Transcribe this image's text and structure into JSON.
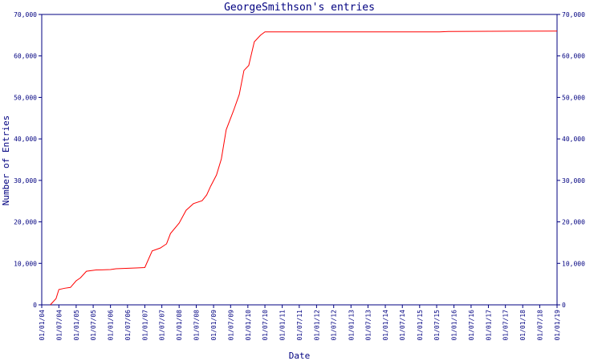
{
  "chart_data": {
    "type": "line",
    "title": "GeorgeSmithson's entries",
    "x_label": "Date",
    "y_label": "Number of Entries",
    "x": [
      "2004-04-01",
      "2004-06-01",
      "2004-07-01",
      "2004-09-01",
      "2004-11-01",
      "2005-01-01",
      "2005-02-15",
      "2005-04-20",
      "2005-08-01",
      "2006-01-01",
      "2006-03-01",
      "2006-10-01",
      "2007-01-01",
      "2007-03-20",
      "2007-06-15",
      "2007-08-20",
      "2007-10-01",
      "2008-01-01",
      "2008-03-15",
      "2008-06-01",
      "2008-09-01",
      "2008-10-20",
      "2008-12-01",
      "2009-02-01",
      "2009-03-25",
      "2009-05-15",
      "2009-08-01",
      "2009-10-01",
      "2009-11-20",
      "2010-01-10",
      "2010-03-10",
      "2010-05-15",
      "2010-07-01",
      "2015-08-01",
      "2015-11-01",
      "2019-01-01"
    ],
    "series": [
      {
        "name": "Entries",
        "color": "#ff0000",
        "values": [
          0,
          1500,
          3700,
          4000,
          4200,
          5800,
          6500,
          8100,
          8400,
          8500,
          8700,
          8900,
          9000,
          13000,
          13700,
          14700,
          17200,
          19700,
          22800,
          24400,
          25100,
          26500,
          28600,
          31300,
          35200,
          42200,
          46800,
          50700,
          56500,
          57700,
          63400,
          65000,
          65800,
          65800,
          65900,
          66000
        ]
      }
    ],
    "xlim": [
      "2004-01-01",
      "2019-01-01"
    ],
    "xticks": [
      {
        "value": "2004-01-01",
        "label": "01/01/04"
      },
      {
        "value": "2004-07-01",
        "label": "01/07/04"
      },
      {
        "value": "2005-01-01",
        "label": "01/01/05"
      },
      {
        "value": "2005-07-01",
        "label": "01/07/05"
      },
      {
        "value": "2006-01-01",
        "label": "01/01/06"
      },
      {
        "value": "2006-07-01",
        "label": "01/07/06"
      },
      {
        "value": "2007-01-01",
        "label": "01/01/07"
      },
      {
        "value": "2007-07-01",
        "label": "01/07/07"
      },
      {
        "value": "2008-01-01",
        "label": "01/01/08"
      },
      {
        "value": "2008-07-01",
        "label": "01/07/08"
      },
      {
        "value": "2009-01-01",
        "label": "01/01/09"
      },
      {
        "value": "2009-07-01",
        "label": "01/07/09"
      },
      {
        "value": "2010-01-01",
        "label": "01/01/10"
      },
      {
        "value": "2010-07-01",
        "label": "01/07/10"
      },
      {
        "value": "2011-01-01",
        "label": "01/01/11"
      },
      {
        "value": "2011-07-01",
        "label": "01/07/11"
      },
      {
        "value": "2012-01-01",
        "label": "01/01/12"
      },
      {
        "value": "2012-07-01",
        "label": "01/07/12"
      },
      {
        "value": "2013-01-01",
        "label": "01/01/13"
      },
      {
        "value": "2013-07-01",
        "label": "01/07/13"
      },
      {
        "value": "2014-01-01",
        "label": "01/01/14"
      },
      {
        "value": "2014-07-01",
        "label": "01/07/14"
      },
      {
        "value": "2015-01-01",
        "label": "01/01/15"
      },
      {
        "value": "2015-07-01",
        "label": "01/07/15"
      },
      {
        "value": "2016-01-01",
        "label": "01/01/16"
      },
      {
        "value": "2016-07-01",
        "label": "01/07/16"
      },
      {
        "value": "2017-01-01",
        "label": "01/01/17"
      },
      {
        "value": "2017-07-01",
        "label": "01/07/17"
      },
      {
        "value": "2018-01-01",
        "label": "01/01/18"
      },
      {
        "value": "2018-07-01",
        "label": "01/07/18"
      },
      {
        "value": "2019-01-01",
        "label": "01/01/19"
      }
    ],
    "ylim": [
      0,
      70000
    ],
    "yticks": [
      0,
      {
        "value": 10000,
        "label": "10,000"
      },
      {
        "value": 20000,
        "label": "20,000"
      },
      {
        "value": 30000,
        "label": "30,000"
      },
      {
        "value": 40000,
        "label": "40,000"
      },
      {
        "value": 50000,
        "label": "50,000"
      },
      {
        "value": 60000,
        "label": "60,000"
      },
      {
        "value": 70000,
        "label": "70,000"
      }
    ],
    "axis_color": "#000080",
    "grid": false
  }
}
